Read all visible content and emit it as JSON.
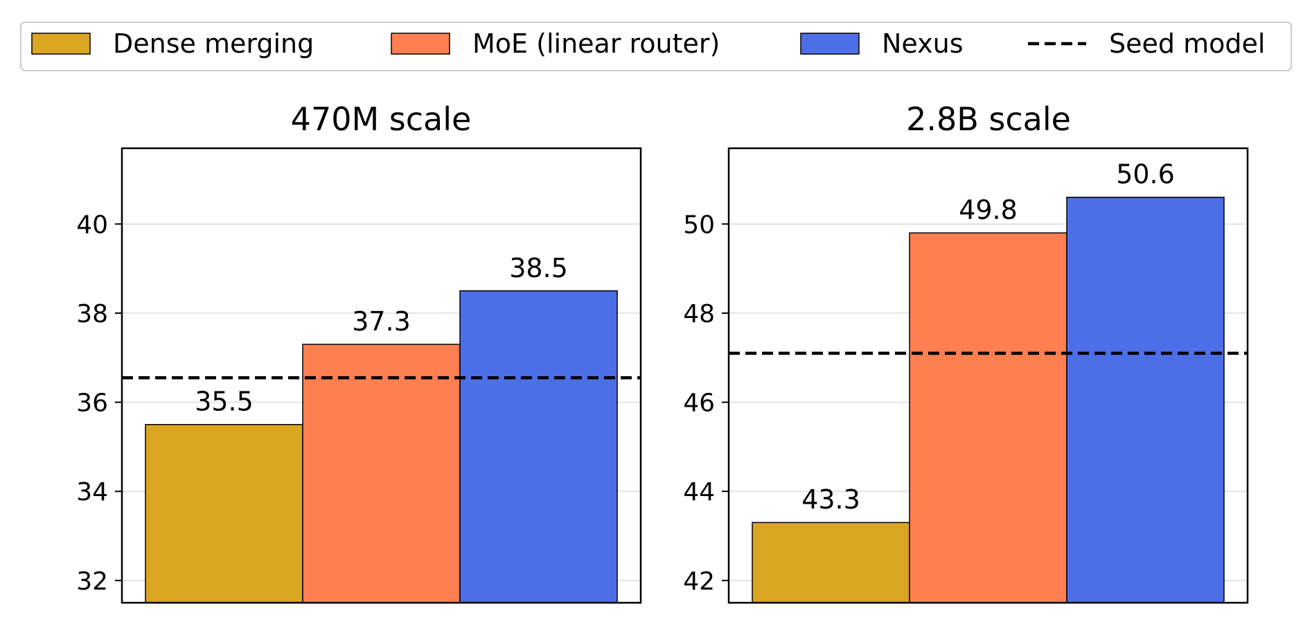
{
  "legend": {
    "placement": "top-center",
    "items": [
      {
        "label": "Dense merging",
        "color": "#DAA520",
        "kind": "patch"
      },
      {
        "label": "MoE (linear router)",
        "color": "#FF7F50",
        "kind": "patch"
      },
      {
        "label": "Nexus",
        "color": "#4C6FE7",
        "kind": "patch"
      },
      {
        "label": "Seed model",
        "color": "#000000",
        "kind": "dashed-line"
      }
    ]
  },
  "chart_data": [
    {
      "type": "bar",
      "title": "470M scale",
      "xlabel": "",
      "ylabel": "",
      "ylim": [
        31.5,
        41.7
      ],
      "yticks": [
        32,
        34,
        36,
        38,
        40
      ],
      "grid": "y",
      "series": [
        {
          "name": "Dense merging",
          "value": 35.5,
          "color": "#DAA520"
        },
        {
          "name": "MoE (linear router)",
          "value": 37.3,
          "color": "#FF7F50"
        },
        {
          "name": "Nexus",
          "value": 38.5,
          "color": "#4C6FE7"
        }
      ],
      "data_labels": [
        "35.5",
        "37.3",
        "38.5"
      ],
      "reference_line": {
        "name": "Seed model",
        "value": 36.55,
        "style": "dashed"
      }
    },
    {
      "type": "bar",
      "title": "2.8B scale",
      "xlabel": "",
      "ylabel": "",
      "ylim": [
        41.5,
        51.7
      ],
      "yticks": [
        42,
        44,
        46,
        48,
        50
      ],
      "grid": "y",
      "series": [
        {
          "name": "Dense merging",
          "value": 43.3,
          "color": "#DAA520"
        },
        {
          "name": "MoE (linear router)",
          "value": 49.8,
          "color": "#FF7F50"
        },
        {
          "name": "Nexus",
          "value": 50.6,
          "color": "#4C6FE7"
        }
      ],
      "data_labels": [
        "43.3",
        "49.8",
        "50.6"
      ],
      "reference_line": {
        "name": "Seed model",
        "value": 47.1,
        "style": "dashed"
      }
    }
  ]
}
